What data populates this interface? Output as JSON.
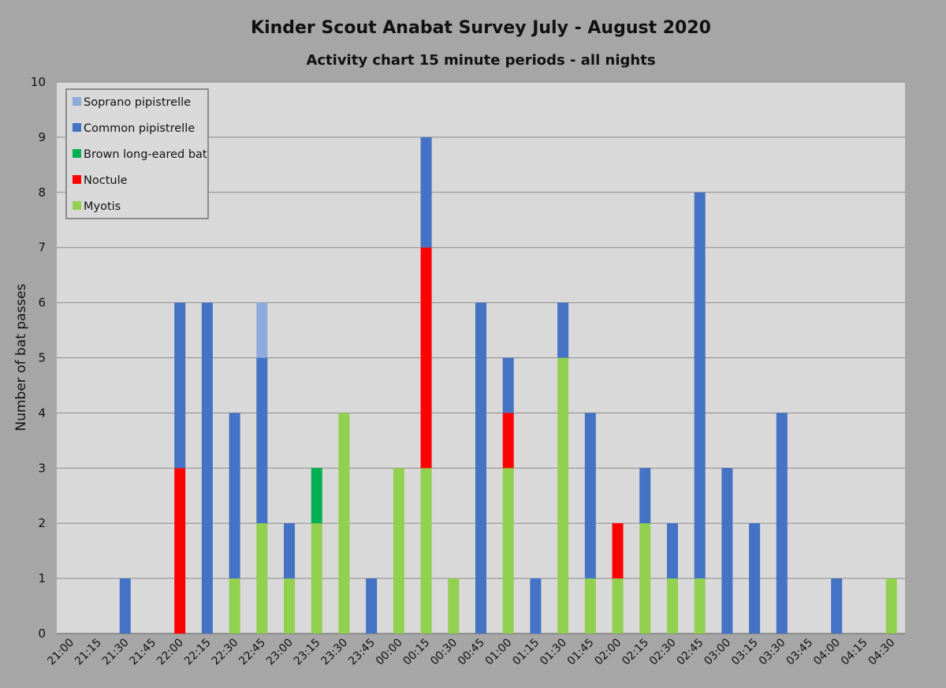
{
  "chart_data": {
    "type": "bar",
    "stacked": true,
    "title": "Kinder Scout Anabat Survey July - August 2020",
    "subtitle": "Activity chart 15 minute periods - all nights",
    "xlabel": "",
    "ylabel": "Number of bat passes",
    "ylim": [
      0,
      10
    ],
    "yticks": [
      0,
      1,
      2,
      3,
      4,
      5,
      6,
      7,
      8,
      9,
      10
    ],
    "grid": true,
    "legend_position": "top-left",
    "categories": [
      "21:00",
      "21:15",
      "21:30",
      "21:45",
      "22:00",
      "22:15",
      "22:30",
      "22:45",
      "23:00",
      "23:15",
      "23:30",
      "23:45",
      "00:00",
      "00:15",
      "00:30",
      "00:45",
      "01:00",
      "01:15",
      "01:30",
      "01:45",
      "02:00",
      "02:15",
      "02:30",
      "02:45",
      "03:00",
      "03:15",
      "03:30",
      "03:45",
      "04:00",
      "04:15",
      "04:30"
    ],
    "series": [
      {
        "name": "Myotis",
        "color": "#92d050",
        "values": [
          0,
          0,
          0,
          0,
          0,
          0,
          1,
          2,
          1,
          2,
          4,
          0,
          3,
          3,
          1,
          0,
          3,
          0,
          5,
          1,
          1,
          2,
          1,
          1,
          0,
          0,
          0,
          0,
          0,
          0,
          1
        ]
      },
      {
        "name": "Noctule",
        "color": "#ff0000",
        "values": [
          0,
          0,
          0,
          0,
          3,
          0,
          0,
          0,
          0,
          0,
          0,
          0,
          0,
          4,
          0,
          0,
          1,
          0,
          0,
          0,
          1,
          0,
          0,
          0,
          0,
          0,
          0,
          0,
          0,
          0,
          0
        ]
      },
      {
        "name": "Brown long-eared bat",
        "color": "#00b050",
        "values": [
          0,
          0,
          0,
          0,
          0,
          0,
          0,
          0,
          0,
          1,
          0,
          0,
          0,
          0,
          0,
          0,
          0,
          0,
          0,
          0,
          0,
          0,
          0,
          0,
          0,
          0,
          0,
          0,
          0,
          0,
          0
        ]
      },
      {
        "name": "Common pipistrelle",
        "color": "#4472c4",
        "values": [
          0,
          0,
          1,
          0,
          3,
          6,
          3,
          3,
          1,
          0,
          0,
          1,
          0,
          2,
          0,
          6,
          1,
          1,
          1,
          3,
          0,
          1,
          1,
          7,
          3,
          2,
          4,
          0,
          1,
          0,
          0
        ]
      },
      {
        "name": "Soprano pipistrelle",
        "color": "#8eaadb",
        "values": [
          0,
          0,
          0,
          0,
          0,
          0,
          0,
          1,
          0,
          0,
          0,
          0,
          0,
          0,
          0,
          0,
          0,
          0,
          0,
          0,
          0,
          0,
          0,
          0,
          0,
          0,
          0,
          0,
          0,
          0,
          0
        ]
      }
    ],
    "legend_order": [
      "Soprano pipistrelle",
      "Common pipistrelle",
      "Brown long-eared bat",
      "Noctule",
      "Myotis"
    ]
  }
}
